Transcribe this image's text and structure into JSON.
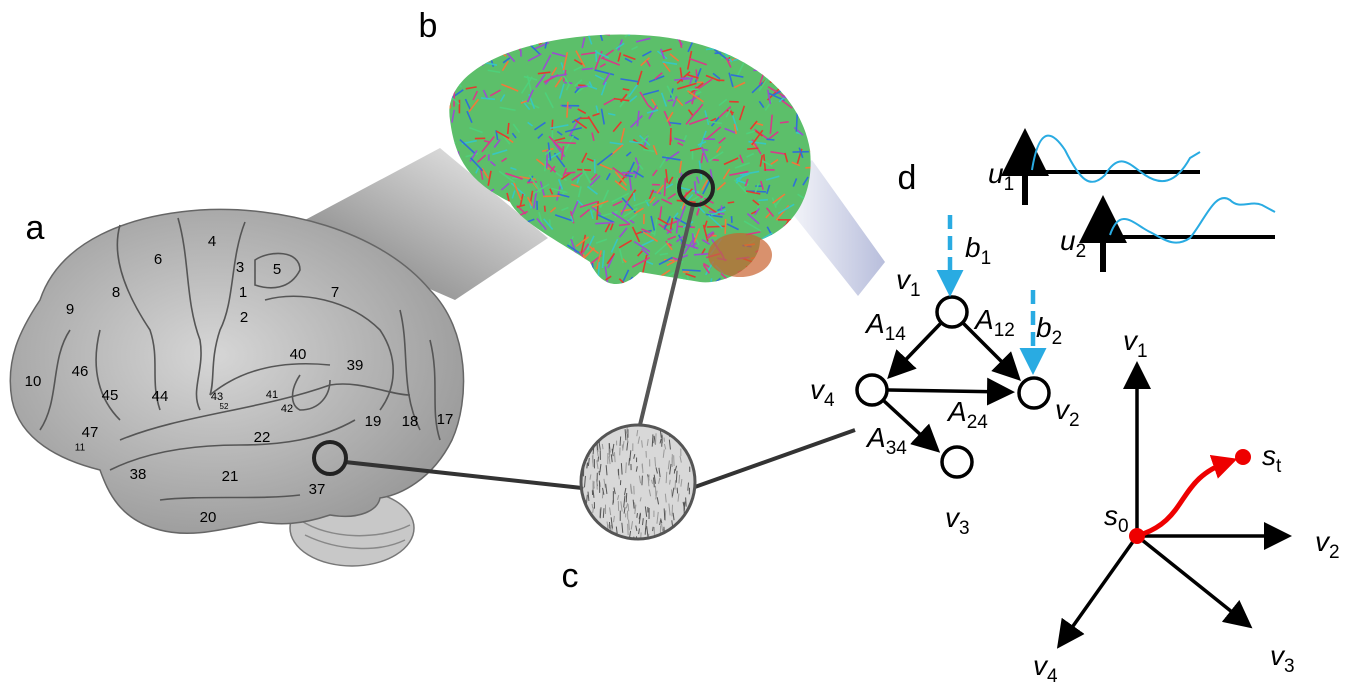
{
  "panels": {
    "a": "a",
    "b": "b",
    "c": "c",
    "d": "d"
  },
  "brain_areas": [
    "4",
    "6",
    "3",
    "5",
    "1",
    "8",
    "7",
    "9",
    "2",
    "40",
    "46",
    "39",
    "10",
    "45",
    "44",
    "43",
    "41",
    "52",
    "42",
    "19",
    "18",
    "17",
    "47",
    "11",
    "22",
    "38",
    "21",
    "37",
    "20"
  ],
  "network": {
    "nodes": [
      {
        "base": "v",
        "sub": "1"
      },
      {
        "base": "v",
        "sub": "2"
      },
      {
        "base": "v",
        "sub": "3"
      },
      {
        "base": "v",
        "sub": "4"
      }
    ],
    "edges": [
      {
        "base": "A",
        "sub": "14"
      },
      {
        "base": "A",
        "sub": "12"
      },
      {
        "base": "A",
        "sub": "24"
      },
      {
        "base": "A",
        "sub": "34"
      }
    ],
    "inputs": [
      {
        "base": "b",
        "sub": "1"
      },
      {
        "base": "b",
        "sub": "2"
      }
    ],
    "signals": [
      {
        "base": "u",
        "sub": "1"
      },
      {
        "base": "u",
        "sub": "2"
      }
    ]
  },
  "state_space": {
    "axes": [
      {
        "base": "v",
        "sub": "1"
      },
      {
        "base": "v",
        "sub": "2"
      },
      {
        "base": "v",
        "sub": "3"
      },
      {
        "base": "v",
        "sub": "4"
      }
    ],
    "origin": {
      "base": "s",
      "sub": "0"
    },
    "endpoint": {
      "base": "s",
      "sub": "t"
    }
  }
}
